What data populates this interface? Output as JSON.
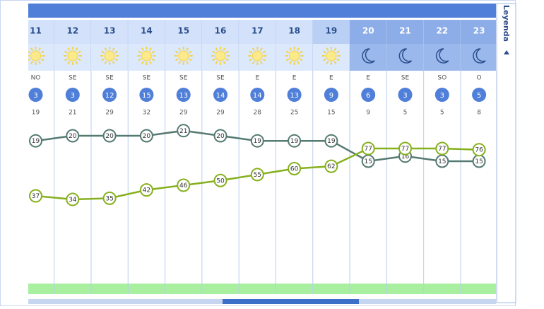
{
  "legend_tab": "Leyenda",
  "hours": [
    {
      "hour": "11",
      "icon": "sun",
      "night": false,
      "wind_dir": "NO",
      "wind_speed": "3",
      "gust": "19"
    },
    {
      "hour": "12",
      "icon": "sun",
      "night": false,
      "wind_dir": "SE",
      "wind_speed": "3",
      "gust": "21"
    },
    {
      "hour": "13",
      "icon": "sun",
      "night": false,
      "wind_dir": "SE",
      "wind_speed": "12",
      "gust": "29"
    },
    {
      "hour": "14",
      "icon": "sun",
      "night": false,
      "wind_dir": "SE",
      "wind_speed": "15",
      "gust": "32"
    },
    {
      "hour": "15",
      "icon": "sun",
      "night": false,
      "wind_dir": "SE",
      "wind_speed": "13",
      "gust": "29"
    },
    {
      "hour": "16",
      "icon": "sun",
      "night": false,
      "wind_dir": "SE",
      "wind_speed": "14",
      "gust": "29"
    },
    {
      "hour": "17",
      "icon": "sun",
      "night": false,
      "wind_dir": "E",
      "wind_speed": "14",
      "gust": "28"
    },
    {
      "hour": "18",
      "icon": "sun",
      "night": false,
      "wind_dir": "E",
      "wind_speed": "13",
      "gust": "25"
    },
    {
      "hour": "19",
      "icon": "sun",
      "night": false,
      "wind_dir": "E",
      "wind_speed": "9",
      "gust": "15"
    },
    {
      "hour": "20",
      "icon": "moon",
      "night": true,
      "wind_dir": "E",
      "wind_speed": "6",
      "gust": "9"
    },
    {
      "hour": "21",
      "icon": "moon",
      "night": true,
      "wind_dir": "SE",
      "wind_speed": "3",
      "gust": "5"
    },
    {
      "hour": "22",
      "icon": "moon",
      "night": true,
      "wind_dir": "SO",
      "wind_speed": "3",
      "gust": "5"
    },
    {
      "hour": "23",
      "icon": "moon",
      "night": true,
      "wind_dir": "O",
      "wind_speed": "5",
      "gust": "8"
    }
  ],
  "temperature": {
    "color": "#557a72",
    "values": [
      19,
      20,
      20,
      20,
      21,
      20,
      19,
      19,
      19,
      15,
      16,
      15,
      15
    ]
  },
  "humidity": {
    "color": "#86b01e",
    "values": [
      37,
      34,
      35,
      42,
      46,
      50,
      55,
      60,
      62,
      77,
      77,
      77,
      76
    ]
  }
}
